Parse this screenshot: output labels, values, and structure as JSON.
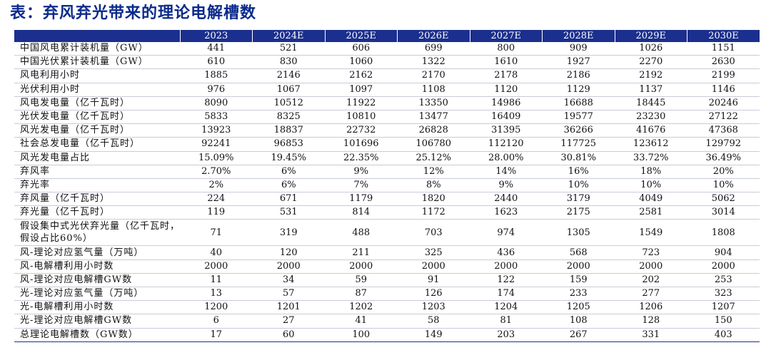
{
  "title": "表：弃风弃光带来的理论电解槽数",
  "table": {
    "corner": "",
    "columns": [
      "2023",
      "2024E",
      "2025E",
      "2026E",
      "2027E",
      "2028E",
      "2029E",
      "2030E"
    ],
    "rows": [
      {
        "label": "中国风电累计装机量（GW）",
        "values": [
          "441",
          "521",
          "606",
          "699",
          "800",
          "909",
          "1026",
          "1151"
        ]
      },
      {
        "label": "中国光伏累计装机量（GW）",
        "values": [
          "610",
          "830",
          "1060",
          "1322",
          "1610",
          "1927",
          "2270",
          "2630"
        ]
      },
      {
        "label": "风电利用小时",
        "values": [
          "1885",
          "2146",
          "2162",
          "2170",
          "2178",
          "2186",
          "2192",
          "2199"
        ]
      },
      {
        "label": "光伏利用小时",
        "values": [
          "976",
          "1067",
          "1097",
          "1108",
          "1120",
          "1129",
          "1137",
          "1146"
        ]
      },
      {
        "label": "风电发电量（亿千瓦时）",
        "values": [
          "8090",
          "10512",
          "11922",
          "13350",
          "14986",
          "16688",
          "18445",
          "20246"
        ]
      },
      {
        "label": "光伏发电量（亿千瓦时）",
        "values": [
          "5833",
          "8325",
          "10810",
          "13477",
          "16409",
          "19577",
          "23230",
          "27122"
        ]
      },
      {
        "label": "风光发电量（亿千瓦时）",
        "values": [
          "13923",
          "18837",
          "22732",
          "26828",
          "31395",
          "36266",
          "41676",
          "47368"
        ]
      },
      {
        "label": "社会总发电量（亿千瓦时）",
        "values": [
          "92241",
          "96853",
          "101696",
          "106780",
          "112120",
          "117725",
          "123612",
          "129792"
        ]
      },
      {
        "label": "风光发电量占比",
        "values": [
          "15.09%",
          "19.45%",
          "22.35%",
          "25.12%",
          "28.00%",
          "30.81%",
          "33.72%",
          "36.49%"
        ]
      },
      {
        "label": "弃风率",
        "values": [
          "2.70%",
          "6%",
          "9%",
          "12%",
          "14%",
          "16%",
          "18%",
          "20%"
        ]
      },
      {
        "label": "弃光率",
        "values": [
          "2%",
          "6%",
          "7%",
          "8%",
          "9%",
          "10%",
          "10%",
          "10%"
        ]
      },
      {
        "label": "弃风量（亿千瓦时）",
        "values": [
          "224",
          "671",
          "1179",
          "1820",
          "2440",
          "3179",
          "4049",
          "5062"
        ]
      },
      {
        "label": "弃光量（亿千瓦时）",
        "values": [
          "119",
          "531",
          "814",
          "1172",
          "1623",
          "2175",
          "2581",
          "3014"
        ]
      },
      {
        "label": "假设集中式光伏弃光量（亿千瓦时，假设占比60%）",
        "values": [
          "71",
          "319",
          "488",
          "703",
          "974",
          "1305",
          "1549",
          "1808"
        ]
      },
      {
        "label": "风-理论对应氢气量（万吨）",
        "values": [
          "40",
          "120",
          "211",
          "325",
          "436",
          "568",
          "723",
          "904"
        ]
      },
      {
        "label": "风-电解槽利用小时数",
        "values": [
          "2000",
          "2000",
          "2000",
          "2000",
          "2000",
          "2000",
          "2000",
          "2000"
        ]
      },
      {
        "label": "风-理论对应电解槽GW数",
        "values": [
          "11",
          "34",
          "59",
          "91",
          "122",
          "159",
          "202",
          "253"
        ]
      },
      {
        "label": "光-理论对应氢气量（万吨）",
        "values": [
          "13",
          "57",
          "87",
          "126",
          "174",
          "233",
          "277",
          "323"
        ]
      },
      {
        "label": "光-电解槽利用小时数",
        "values": [
          "1200",
          "1201",
          "1202",
          "1203",
          "1204",
          "1205",
          "1206",
          "1207"
        ]
      },
      {
        "label": "光-理论对应电解槽GW数",
        "values": [
          "6",
          "27",
          "41",
          "58",
          "81",
          "108",
          "128",
          "150"
        ]
      },
      {
        "label": "总理论电解槽数（GW数）",
        "values": [
          "17",
          "60",
          "100",
          "149",
          "203",
          "267",
          "331",
          "403"
        ]
      }
    ]
  },
  "colors": {
    "title": "#0b2a8c",
    "header_bg": "#1b2f8e",
    "header_text": "#ffffff",
    "row_rule": "#c9ccd8"
  }
}
